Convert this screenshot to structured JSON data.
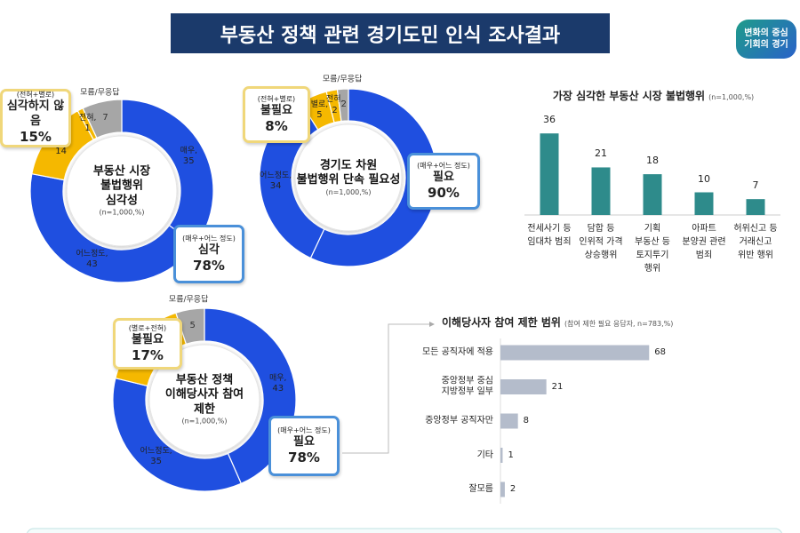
{
  "header": {
    "title": "부동산 정책 관련 경기도민 인식 조사결과",
    "logo": "변화의 중심\n기회의 경기"
  },
  "chart_data": [
    {
      "type": "donut",
      "title": "부동산 시장\n불법행위\n심각성",
      "subtitle": "(n=1,000,%)",
      "categories": [
        "매우,",
        "어느정도,",
        "별로,",
        "전혀,",
        "모름/무응답"
      ],
      "values": [
        35,
        43,
        14,
        1,
        7
      ],
      "colors": [
        "#1f4fe0",
        "#1f4fe0",
        "#f5b800",
        "#f5b800",
        "#a6a6a6"
      ],
      "callouts": [
        {
          "group": "(전혀+별로)",
          "label": "심각하지 않음",
          "value": "15%"
        },
        {
          "group": "(매우+어느 정도)",
          "label": "심각",
          "value": "78%"
        }
      ]
    },
    {
      "type": "donut",
      "title": "경기도 차원\n불법행위 단속 필요성",
      "subtitle": "(n=1,000,%)",
      "categories": [
        "매우,",
        "어느정도,",
        "별로,",
        "전혀,",
        "모름/무응답"
      ],
      "values": [
        57,
        34,
        5,
        2,
        2
      ],
      "colors": [
        "#1f4fe0",
        "#1f4fe0",
        "#f5b800",
        "#f5b800",
        "#a6a6a6"
      ],
      "callouts": [
        {
          "group": "(전혀+별로)",
          "label": "불필요",
          "value": "8%"
        },
        {
          "group": "(매우+어느 정도)",
          "label": "필요",
          "value": "90%"
        }
      ]
    },
    {
      "type": "bar",
      "title": "가장 심각한 부동산 시장 불법행위",
      "subtitle": "(n=1,000,%)",
      "categories": [
        "전세사기 등\n임대차 범죄",
        "담합 등\n인위적 가격\n상승행위",
        "기획\n부동산 등\n토지투기\n행위",
        "아파트\n분양권 관련\n범죄",
        "허위신고 등\n거래신고\n위반 행위"
      ],
      "values": [
        36,
        21,
        18,
        10,
        7
      ],
      "color": "#2e8b8b"
    },
    {
      "type": "donut",
      "title": "부동산 정책\n이해당사자 참여\n제한",
      "subtitle": "(n=1,000,%)",
      "categories": [
        "매우,",
        "어느정도,",
        "별로,",
        "전혀,",
        "모름/무응답"
      ],
      "values": [
        43,
        35,
        12,
        4,
        5
      ],
      "colors": [
        "#1f4fe0",
        "#1f4fe0",
        "#f5b800",
        "#f5b800",
        "#a6a6a6"
      ],
      "callouts": [
        {
          "group": "(별로+전혀)",
          "label": "불필요",
          "value": "17%"
        },
        {
          "group": "(매우+어느 정도)",
          "label": "필요",
          "value": "78%"
        }
      ]
    },
    {
      "type": "hbar",
      "title": "이해당사자 참여 제한 범위",
      "subtitle": "(참여 제한 필요 응답자, n=783,%)",
      "categories": [
        "모든 공직자에 적용",
        "중앙정부 중심\n지방정부 일부",
        "중앙정부 공직자만",
        "기타",
        "잘모름"
      ],
      "values": [
        68,
        21,
        8,
        1,
        2
      ],
      "color": "#b4bccb"
    }
  ]
}
